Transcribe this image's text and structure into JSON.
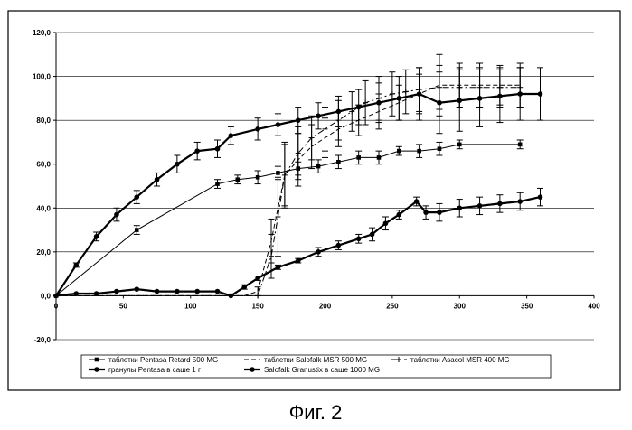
{
  "figure_caption": "Фиг. 2",
  "chart_data": {
    "type": "line",
    "xlabel": "",
    "ylabel": "",
    "xlim": [
      0,
      400
    ],
    "ylim": [
      -20,
      120
    ],
    "x_ticks": [
      0,
      50,
      100,
      150,
      200,
      250,
      300,
      350,
      400
    ],
    "y_ticks": [
      -20,
      0,
      20,
      40,
      60,
      80,
      100,
      120
    ],
    "x_tick_labels": [
      "0",
      "50",
      "100",
      "150",
      "200",
      "250",
      "300",
      "350",
      "400"
    ],
    "y_tick_labels": [
      "-20,0",
      "0,0",
      "20,0",
      "40,0",
      "60,0",
      "80,0",
      "100,0",
      "120,0"
    ],
    "grid": "horizontal",
    "legend_position": "bottom",
    "series": [
      {
        "name": "таблетки Pentasa Retard 500 MG",
        "marker": "square",
        "line": "thin",
        "x": [
          0,
          60,
          120,
          135,
          150,
          165,
          180,
          195,
          210,
          225,
          240,
          255,
          270,
          285,
          300,
          345
        ],
        "y": [
          0,
          30,
          51,
          53,
          54,
          56,
          58,
          59,
          61,
          63,
          63,
          66,
          66,
          67,
          69,
          69
        ],
        "err": [
          0,
          2,
          2,
          2,
          3,
          3,
          3,
          3,
          3,
          3,
          3,
          2,
          3,
          3,
          2,
          2
        ]
      },
      {
        "name": "таблетки Salofalk MSR 500 MG",
        "marker": "none",
        "line": "dashed",
        "x": [
          0,
          120,
          140,
          150,
          160,
          170,
          180,
          190,
          200,
          210,
          225,
          240,
          255,
          270,
          285,
          300,
          315,
          330,
          345
        ],
        "y": [
          0,
          0,
          0,
          2,
          25,
          55,
          62,
          68,
          72,
          76,
          80,
          84,
          88,
          92,
          96,
          96,
          96,
          96,
          96
        ],
        "err": [
          0,
          0,
          0,
          2,
          10,
          14,
          12,
          10,
          9,
          8,
          7,
          8,
          8,
          9,
          14,
          10,
          10,
          9,
          10
        ]
      },
      {
        "name": "таблетки Asacol MSR 400 MG",
        "marker": "plus",
        "line": "dash-dot",
        "x": [
          0,
          150,
          160,
          165,
          170,
          180,
          190,
          200,
          210,
          220,
          230,
          240,
          250,
          260,
          270,
          285,
          300,
          315,
          330,
          345
        ],
        "y": [
          0,
          0,
          18,
          36,
          55,
          65,
          72,
          76,
          80,
          84,
          88,
          90,
          92,
          93,
          94,
          95,
          95,
          95,
          95,
          95
        ],
        "err": [
          0,
          0,
          10,
          18,
          15,
          12,
          10,
          10,
          9,
          9,
          10,
          10,
          10,
          10,
          10,
          10,
          9,
          9,
          9,
          9
        ]
      },
      {
        "name": "гранулы Pentasa в саше 1 г",
        "marker": "circle",
        "line": "bold",
        "x": [
          0,
          15,
          30,
          45,
          60,
          75,
          90,
          105,
          120,
          130,
          150,
          165,
          180,
          195,
          210,
          225,
          240,
          255,
          270,
          285,
          300,
          315,
          330,
          345,
          360
        ],
        "y": [
          0,
          14,
          27,
          37,
          45,
          53,
          60,
          66,
          67,
          73,
          76,
          78,
          80,
          82,
          84,
          86,
          88,
          90,
          92,
          88,
          89,
          90,
          91,
          92,
          92
        ],
        "err": [
          0,
          1,
          2,
          3,
          3,
          3,
          4,
          4,
          4,
          4,
          5,
          5,
          6,
          6,
          7,
          8,
          9,
          10,
          12,
          14,
          14,
          13,
          12,
          12,
          12
        ]
      },
      {
        "name": "Salofalk Granustix в саше 1000 MG",
        "marker": "circle",
        "line": "bold",
        "x": [
          0,
          15,
          30,
          45,
          60,
          75,
          90,
          105,
          120,
          130,
          140,
          150,
          165,
          180,
          195,
          210,
          225,
          235,
          245,
          255,
          268,
          275,
          285,
          300,
          315,
          330,
          345,
          360
        ],
        "y": [
          0,
          1,
          1,
          2,
          3,
          2,
          2,
          2,
          2,
          0,
          4,
          8,
          13,
          16,
          20,
          23,
          26,
          28,
          33,
          37,
          43,
          38,
          38,
          40,
          41,
          42,
          43,
          45
        ],
        "err": [
          0,
          0,
          0,
          0,
          0,
          0,
          0,
          0,
          0,
          0,
          1,
          1,
          1,
          1,
          2,
          2,
          2,
          3,
          3,
          2,
          2,
          3,
          4,
          4,
          4,
          4,
          4,
          4
        ]
      }
    ]
  }
}
